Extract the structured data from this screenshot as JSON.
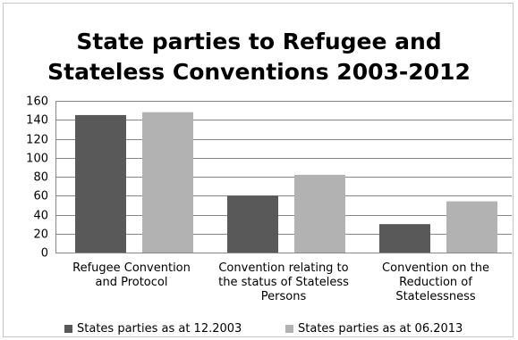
{
  "chart_data": {
    "type": "bar",
    "title_lines": [
      "State parties to Refugee and",
      "Stateless Conventions 2003-2012"
    ],
    "categories": [
      [
        "Refugee Convention",
        "and Protocol"
      ],
      [
        "Convention relating to",
        "the status of Stateless",
        "Persons"
      ],
      [
        "Convention on the",
        "Reduction of",
        "Statelessness"
      ]
    ],
    "series": [
      {
        "name": "States parties as at 12.2003",
        "color": "#595959",
        "values": [
          145,
          60,
          30
        ]
      },
      {
        "name": "States parties as at 06.2013",
        "color": "#b2b2b2",
        "values": [
          148,
          82,
          54
        ]
      }
    ],
    "ylim": [
      0,
      160
    ],
    "yticks": [
      0,
      20,
      40,
      60,
      80,
      100,
      120,
      140,
      160
    ],
    "grid": true,
    "legend_position": "bottom"
  }
}
